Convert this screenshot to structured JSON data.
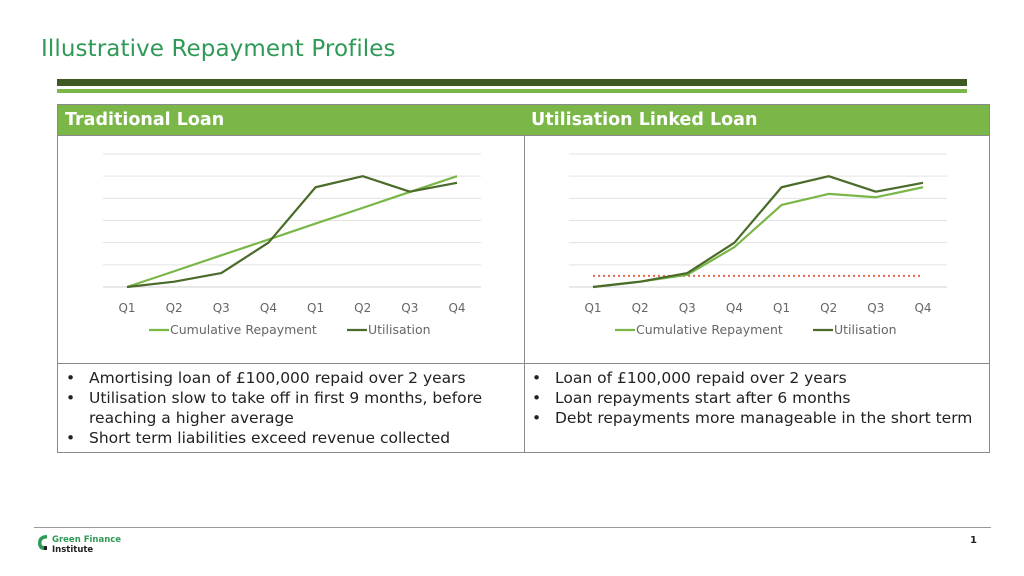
{
  "slide": {
    "title": "Illustrative Repayment Profiles",
    "page_number": "1"
  },
  "left": {
    "header": "Traditional Loan",
    "bullets": [
      "Amortising loan of £100,000 repaid over 2 years",
      "Utilisation slow to take off in first 9 months, before reaching a higher average",
      "Short term liabilities exceed revenue collected"
    ]
  },
  "right": {
    "header": "Utilisation Linked Loan",
    "bullets": [
      "Loan of £100,000 repaid over 2 years",
      "Loan repayments start after 6 months",
      "Debt repayments more manageable in the short term"
    ]
  },
  "logo": {
    "line1": "Green Finance",
    "line2": "Institute"
  },
  "colors": {
    "accent_green": "#2f9a57",
    "header_green": "#7ab648",
    "dark_green": "#3d5a23",
    "repayment_line": "#7ab648",
    "utilisation_line": "#4a6b2a",
    "dotted_line": "#e8674a"
  },
  "chart_data": [
    {
      "type": "line",
      "title": "",
      "categories": [
        "Q1",
        "Q2",
        "Q3",
        "Q4",
        "Q1",
        "Q2",
        "Q3",
        "Q4"
      ],
      "ylim": [
        0,
        6
      ],
      "grid": true,
      "legend": "bottom",
      "series": [
        {
          "name": "Cumulative Repayment",
          "color": "#7ab648",
          "values": [
            0,
            0.71,
            1.43,
            2.14,
            2.86,
            3.57,
            4.29,
            5.0
          ]
        },
        {
          "name": "Utilisation",
          "color": "#4a6b2a",
          "values": [
            0,
            0.24,
            0.63,
            2.0,
            4.5,
            5.0,
            4.3,
            4.7
          ]
        }
      ]
    },
    {
      "type": "line",
      "title": "",
      "categories": [
        "Q1",
        "Q2",
        "Q3",
        "Q4",
        "Q1",
        "Q2",
        "Q3",
        "Q4"
      ],
      "ylim": [
        0,
        6
      ],
      "grid": true,
      "legend": "bottom",
      "reference_line": {
        "value": 0.5,
        "style": "dotted",
        "color": "#e8674a"
      },
      "series": [
        {
          "name": "Cumulative Repayment",
          "color": "#7ab648",
          "values": [
            0,
            0.24,
            0.55,
            1.8,
            3.7,
            4.2,
            4.05,
            4.5
          ]
        },
        {
          "name": "Utilisation",
          "color": "#4a6b2a",
          "values": [
            0,
            0.24,
            0.63,
            2.0,
            4.5,
            5.0,
            4.3,
            4.7
          ]
        }
      ]
    }
  ]
}
